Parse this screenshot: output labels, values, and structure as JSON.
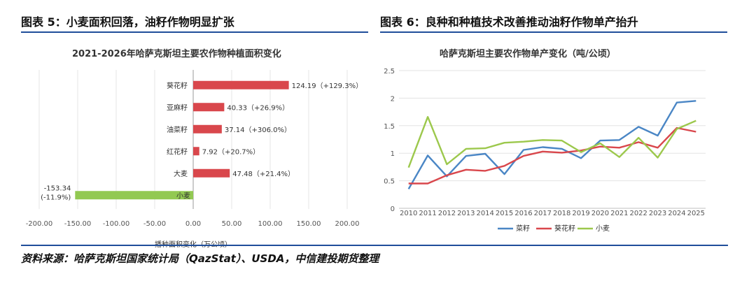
{
  "figures": {
    "left_title": "图表 5：小麦面积回落，油籽作物明显扩张",
    "right_title": "图表 6：良种和种植技术改善推动油籽作物单产抬升"
  },
  "source": "资料来源：哈萨克斯坦国家统计局（QazStat）、USDA，中信建投期货整理",
  "colors": {
    "rule": "#1f4e9a",
    "bar_positive": "#d9474c",
    "bar_negative": "#92c952",
    "line_rapeseed": "#4a86c5",
    "line_sunflower": "#d9474c",
    "line_wheat": "#9cc84c"
  },
  "chart_data": [
    {
      "type": "bar",
      "orientation": "horizontal",
      "title": "2021-2026年哈萨克斯坦主要农作物种植面积变化",
      "xlabel": "播种面积变化（万公顷）",
      "ylabel": "",
      "xlim": [
        -200,
        200
      ],
      "xticks": [
        "-200.00",
        "-150.00",
        "-100.00",
        "-50.00",
        "0.00",
        "50.00",
        "100.00",
        "150.00",
        "200.00"
      ],
      "categories": [
        "葵花籽",
        "亚麻籽",
        "油菜籽",
        "红花籽",
        "大麦",
        "小麦"
      ],
      "values": [
        124.19,
        40.33,
        37.14,
        7.92,
        47.48,
        -153.34
      ],
      "data_labels": [
        "124.19（+129.3%）",
        "40.33（+26.9%）",
        "37.14（+306.0%）",
        "7.92（+20.7%）",
        "47.48（+21.4%）",
        "-153.34"
      ],
      "neg_pct_label": "(-11.9%)",
      "grid": true
    },
    {
      "type": "line",
      "title": "哈萨克斯坦主要农作物单产变化（吨/公顷）",
      "xlabel": "",
      "ylabel": "",
      "ylim": [
        0,
        2.5
      ],
      "yticks": [
        "0",
        "0.5",
        "1",
        "1.5",
        "2",
        "2.5"
      ],
      "x": [
        "2010",
        "2011",
        "2012",
        "2013",
        "2014",
        "2015",
        "2016",
        "2017",
        "2018",
        "2019",
        "2020",
        "2021",
        "2022",
        "2023",
        "2024",
        "2025"
      ],
      "series": [
        {
          "name": "菜籽",
          "values": [
            0.35,
            0.96,
            0.58,
            0.95,
            0.99,
            0.62,
            1.06,
            1.11,
            1.08,
            0.91,
            1.23,
            1.24,
            1.48,
            1.32,
            1.92,
            1.95
          ]
        },
        {
          "name": "葵花籽",
          "values": [
            0.45,
            0.45,
            0.6,
            0.7,
            0.68,
            0.77,
            0.95,
            1.03,
            1.01,
            1.05,
            1.12,
            1.1,
            1.2,
            1.1,
            1.46,
            1.39
          ]
        },
        {
          "name": "小麦",
          "values": [
            0.74,
            1.66,
            0.8,
            1.08,
            1.09,
            1.19,
            1.21,
            1.24,
            1.23,
            1.02,
            1.18,
            0.93,
            1.28,
            0.92,
            1.44,
            1.59
          ]
        }
      ],
      "legend": "bottom",
      "grid": true
    }
  ]
}
